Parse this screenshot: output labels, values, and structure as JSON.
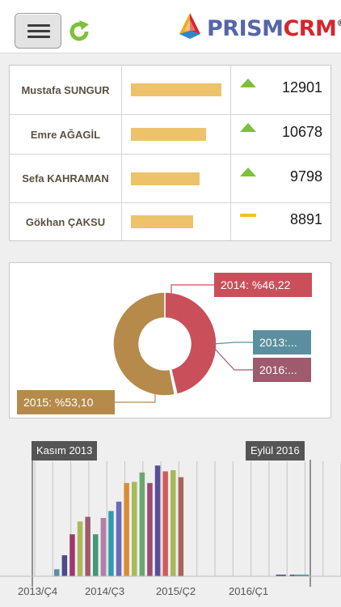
{
  "header": {
    "logo": {
      "part1": "PRISM",
      "part2": "CRM",
      "reg": "®"
    },
    "icons": {
      "menu": "hamburger-icon",
      "refresh": "refresh-icon"
    },
    "colors": {
      "refresh": "#7dc03a",
      "logo_blue": "#5566a8",
      "logo_red": "#d6262e"
    }
  },
  "ranking": {
    "max": 12901,
    "rows": [
      {
        "name": "Mustafa SUNGUR",
        "value": 12901,
        "value_label": "12901",
        "trend": "up"
      },
      {
        "name": "Emre AĞAGİL",
        "value": 10678,
        "value_label": "10678",
        "trend": "up"
      },
      {
        "name": "Sefa KAHRAMAN",
        "value": 9798,
        "value_label": "9798",
        "trend": "up"
      },
      {
        "name": "Gökhan ÇAKSU",
        "value": 8891,
        "value_label": "8891",
        "trend": "flat"
      }
    ],
    "colors": {
      "bar": "#ecc36a",
      "up": "#7dc03a",
      "flat": "#f0c41a"
    }
  },
  "chart_data": [
    {
      "type": "pie",
      "style": "donut",
      "slices": [
        {
          "label": "2014: %46,22",
          "category": "2014",
          "value": 46.22,
          "color": "#c9505a"
        },
        {
          "label": "2013:...",
          "category": "2013",
          "value": 0.34,
          "color": "#5b8fa0"
        },
        {
          "label": "2016:...",
          "category": "2016",
          "value": 0.34,
          "color": "#9e5b6e"
        },
        {
          "label": "2015: %53,10",
          "category": "2015",
          "value": 53.1,
          "color": "#b58a4b"
        }
      ]
    },
    {
      "type": "bar",
      "range_start_label": "Kasım 2013",
      "range_end_label": "Eylül 2016",
      "xtick_labels": [
        "2013/Ç4",
        "2014/Ç3",
        "2015/Ç2",
        "2016/Ç1"
      ],
      "ylim": [
        0,
        100
      ],
      "bars": [
        {
          "value": 6,
          "color": "#5b8fa0"
        },
        {
          "value": 18,
          "color": "#4a4a8a"
        },
        {
          "value": 36,
          "color": "#a0366e"
        },
        {
          "value": 47,
          "color": "#a8b95a"
        },
        {
          "value": 51,
          "color": "#9e5b6e"
        },
        {
          "value": 36,
          "color": "#3f9a76"
        },
        {
          "value": 50,
          "color": "#b57ea8"
        },
        {
          "value": 56,
          "color": "#2f9ab0"
        },
        {
          "value": 64,
          "color": "#6b6ab8"
        },
        {
          "value": 80,
          "color": "#d88c35"
        },
        {
          "value": 81,
          "color": "#a8b95a"
        },
        {
          "value": 89,
          "color": "#6aa870"
        },
        {
          "value": 80,
          "color": "#9e4a74"
        },
        {
          "value": 95,
          "color": "#5a4e96"
        },
        {
          "value": 90,
          "color": "#d45a5a"
        },
        {
          "value": 91,
          "color": "#a8b95a"
        },
        {
          "value": 85,
          "color": "#a8655a"
        },
        {
          "value": 0,
          "color": "#6b6ab8"
        },
        {
          "value": 0,
          "color": "#6b6ab8"
        },
        {
          "value": 0,
          "color": "#6b6ab8"
        },
        {
          "value": 0,
          "color": "#6b6ab8"
        },
        {
          "value": 0,
          "color": "#6b6ab8"
        },
        {
          "value": 0,
          "color": "#6b6ab8"
        },
        {
          "value": 0,
          "color": "#6b6ab8"
        },
        {
          "value": 0,
          "color": "#6b6ab8"
        },
        {
          "value": 1,
          "color": "#4a4a8a"
        },
        {
          "value": 1,
          "color": "#4a4a8a"
        },
        {
          "value": 0,
          "color": "#6b6ab8"
        },
        {
          "value": 1,
          "color": "#4a4a8a"
        },
        {
          "value": 1,
          "color": "#3f9a76"
        },
        {
          "value": 1,
          "color": "#2f9ab0"
        },
        {
          "value": 1,
          "color": "#2f9ab0"
        }
      ]
    }
  ]
}
